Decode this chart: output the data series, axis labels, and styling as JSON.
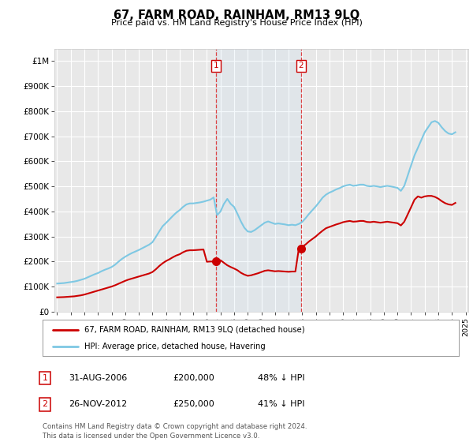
{
  "title": "67, FARM ROAD, RAINHAM, RM13 9LQ",
  "subtitle": "Price paid vs. HM Land Registry's House Price Index (HPI)",
  "ylabel_ticks": [
    "£0",
    "£100K",
    "£200K",
    "£300K",
    "£400K",
    "£500K",
    "£600K",
    "£700K",
    "£800K",
    "£900K",
    "£1M"
  ],
  "ytick_values": [
    0,
    100000,
    200000,
    300000,
    400000,
    500000,
    600000,
    700000,
    800000,
    900000,
    1000000
  ],
  "ylim": [
    0,
    1050000
  ],
  "xlim_start": 1994.8,
  "xlim_end": 2025.2,
  "background_color": "#ffffff",
  "plot_bg_color": "#e8e8e8",
  "grid_color": "#ffffff",
  "line_hpi_color": "#7ec8e3",
  "line_price_color": "#cc0000",
  "marker_color": "#cc0000",
  "transaction1_x": 2006.67,
  "transaction1_y": 200000,
  "transaction2_x": 2012.92,
  "transaction2_y": 250000,
  "vline1_x": 2006.67,
  "vline2_x": 2012.92,
  "legend_label_price": "67, FARM ROAD, RAINHAM, RM13 9LQ (detached house)",
  "legend_label_hpi": "HPI: Average price, detached house, Havering",
  "table_entries": [
    {
      "num": "1",
      "date": "31-AUG-2006",
      "price": "£200,000",
      "pct": "48% ↓ HPI"
    },
    {
      "num": "2",
      "date": "26-NOV-2012",
      "price": "£250,000",
      "pct": "41% ↓ HPI"
    }
  ],
  "footer": "Contains HM Land Registry data © Crown copyright and database right 2024.\nThis data is licensed under the Open Government Licence v3.0.",
  "hpi_data_x": [
    1995.0,
    1995.25,
    1995.5,
    1995.75,
    1996.0,
    1996.25,
    1996.5,
    1996.75,
    1997.0,
    1997.25,
    1997.5,
    1997.75,
    1998.0,
    1998.25,
    1998.5,
    1998.75,
    1999.0,
    1999.25,
    1999.5,
    1999.75,
    2000.0,
    2000.25,
    2000.5,
    2000.75,
    2001.0,
    2001.25,
    2001.5,
    2001.75,
    2002.0,
    2002.25,
    2002.5,
    2002.75,
    2003.0,
    2003.25,
    2003.5,
    2003.75,
    2004.0,
    2004.25,
    2004.5,
    2004.75,
    2005.0,
    2005.25,
    2005.5,
    2005.75,
    2006.0,
    2006.25,
    2006.5,
    2006.75,
    2007.0,
    2007.25,
    2007.5,
    2007.75,
    2008.0,
    2008.25,
    2008.5,
    2008.75,
    2009.0,
    2009.25,
    2009.5,
    2009.75,
    2010.0,
    2010.25,
    2010.5,
    2010.75,
    2011.0,
    2011.25,
    2011.5,
    2011.75,
    2012.0,
    2012.25,
    2012.5,
    2012.75,
    2013.0,
    2013.25,
    2013.5,
    2013.75,
    2014.0,
    2014.25,
    2014.5,
    2014.75,
    2015.0,
    2015.25,
    2015.5,
    2015.75,
    2016.0,
    2016.25,
    2016.5,
    2016.75,
    2017.0,
    2017.25,
    2017.5,
    2017.75,
    2018.0,
    2018.25,
    2018.5,
    2018.75,
    2019.0,
    2019.25,
    2019.5,
    2019.75,
    2020.0,
    2020.25,
    2020.5,
    2020.75,
    2021.0,
    2021.25,
    2021.5,
    2021.75,
    2022.0,
    2022.25,
    2022.5,
    2022.75,
    2023.0,
    2023.25,
    2023.5,
    2023.75,
    2024.0,
    2024.25
  ],
  "hpi_data_y": [
    112000,
    113000,
    114000,
    116000,
    118000,
    120000,
    123000,
    127000,
    131000,
    137000,
    143000,
    149000,
    154000,
    161000,
    167000,
    172000,
    178000,
    187000,
    199000,
    210000,
    219000,
    227000,
    234000,
    240000,
    246000,
    253000,
    260000,
    267000,
    277000,
    298000,
    320000,
    341000,
    354000,
    368000,
    382000,
    395000,
    405000,
    418000,
    428000,
    432000,
    432000,
    434000,
    436000,
    439000,
    443000,
    447000,
    456000,
    385000,
    400000,
    430000,
    450000,
    430000,
    418000,
    390000,
    360000,
    335000,
    320000,
    318000,
    325000,
    335000,
    345000,
    355000,
    360000,
    355000,
    350000,
    352000,
    350000,
    348000,
    345000,
    347000,
    345000,
    350000,
    358000,
    373000,
    390000,
    405000,
    420000,
    437000,
    455000,
    467000,
    475000,
    481000,
    488000,
    493000,
    500000,
    504000,
    507000,
    502000,
    504000,
    507000,
    507000,
    502000,
    500000,
    502000,
    500000,
    497000,
    500000,
    502000,
    500000,
    497000,
    494000,
    482000,
    502000,
    543000,
    584000,
    624000,
    654000,
    685000,
    716000,
    736000,
    756000,
    761000,
    754000,
    736000,
    721000,
    711000,
    708000,
    716000
  ],
  "price_data_x": [
    1995.0,
    1995.25,
    1995.5,
    1995.75,
    1996.0,
    1996.25,
    1996.5,
    1996.75,
    1997.0,
    1997.25,
    1997.5,
    1997.75,
    1998.0,
    1998.25,
    1998.5,
    1998.75,
    1999.0,
    1999.25,
    1999.5,
    1999.75,
    2000.0,
    2000.25,
    2000.5,
    2000.75,
    2001.0,
    2001.25,
    2001.5,
    2001.75,
    2002.0,
    2002.25,
    2002.5,
    2002.75,
    2003.0,
    2003.25,
    2003.5,
    2003.75,
    2004.0,
    2004.25,
    2004.5,
    2004.75,
    2005.0,
    2005.25,
    2005.5,
    2005.75,
    2006.0,
    2006.25,
    2006.5,
    2006.75,
    2007.0,
    2007.25,
    2007.5,
    2007.75,
    2008.0,
    2008.25,
    2008.5,
    2008.75,
    2009.0,
    2009.25,
    2009.5,
    2009.75,
    2010.0,
    2010.25,
    2010.5,
    2010.75,
    2011.0,
    2011.25,
    2011.5,
    2011.75,
    2012.0,
    2012.25,
    2012.5,
    2012.75,
    2013.0,
    2013.25,
    2013.5,
    2013.75,
    2014.0,
    2014.25,
    2014.5,
    2014.75,
    2015.0,
    2015.25,
    2015.5,
    2015.75,
    2016.0,
    2016.25,
    2016.5,
    2016.75,
    2017.0,
    2017.25,
    2017.5,
    2017.75,
    2018.0,
    2018.25,
    2018.5,
    2018.75,
    2019.0,
    2019.25,
    2019.5,
    2019.75,
    2020.0,
    2020.25,
    2020.5,
    2020.75,
    2021.0,
    2021.25,
    2021.5,
    2021.75,
    2022.0,
    2022.25,
    2022.5,
    2022.75,
    2023.0,
    2023.25,
    2023.5,
    2023.75,
    2024.0,
    2024.25
  ],
  "price_data_y": [
    57000,
    57500,
    58000,
    59000,
    60000,
    61000,
    63000,
    65000,
    68000,
    72000,
    76000,
    80000,
    84000,
    88000,
    92000,
    96000,
    100000,
    105000,
    111000,
    117000,
    123000,
    128000,
    132000,
    136000,
    140000,
    144000,
    148000,
    152000,
    158000,
    169000,
    182000,
    193000,
    202000,
    209000,
    217000,
    224000,
    229000,
    237000,
    243000,
    245000,
    245000,
    246000,
    247000,
    248000,
    199000,
    200000,
    200000,
    200000,
    205000,
    195000,
    185000,
    178000,
    172000,
    165000,
    155000,
    148000,
    143000,
    145000,
    149000,
    153000,
    158000,
    163000,
    165000,
    163000,
    161000,
    162000,
    161000,
    160000,
    159000,
    160000,
    160000,
    250000,
    258000,
    268000,
    280000,
    290000,
    300000,
    312000,
    323000,
    333000,
    338000,
    343000,
    348000,
    352000,
    357000,
    360000,
    362000,
    359000,
    360000,
    362000,
    362000,
    358000,
    357000,
    359000,
    357000,
    355000,
    357000,
    359000,
    357000,
    355000,
    353000,
    344000,
    359000,
    388000,
    417000,
    447000,
    460000,
    455000,
    460000,
    462000,
    462000,
    458000,
    451000,
    441000,
    433000,
    428000,
    426000,
    434000
  ]
}
